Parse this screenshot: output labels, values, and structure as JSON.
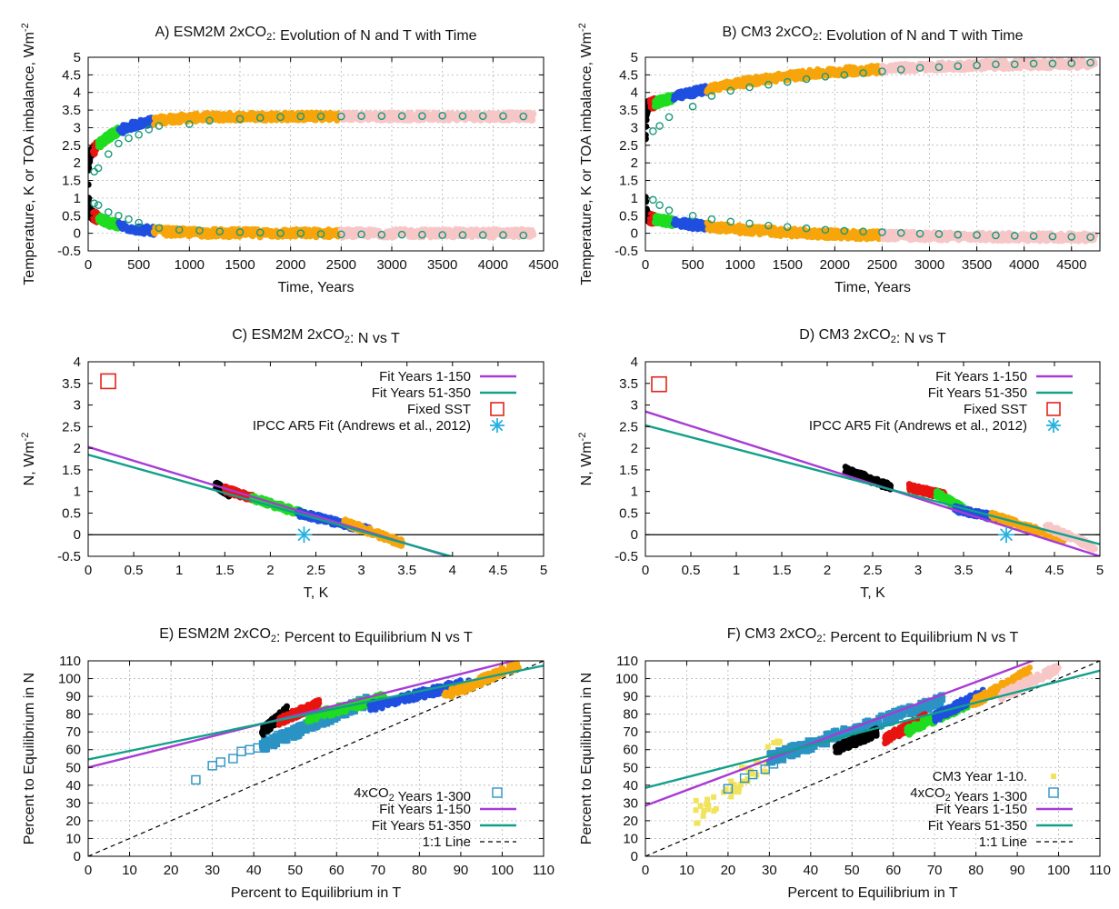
{
  "figure": {
    "panel_titles": [
      "A) ESM2M 2xCO2: Evolution of N and T with Time",
      "B) CM3 2xCO2: Evolution of N and T with Time",
      "C) ESM2M 2xCO2: N vs T",
      "D) CM3 2xCO2: N vs T",
      "E) ESM2M 2xCO2: Percent to Equilibrium N vs T",
      "F) CM3 2xCO2: Percent to Equilibrium N vs T"
    ]
  },
  "chart_data": [
    {
      "panel": "A",
      "type": "scatter",
      "title": "A) ESM2M 2xCO2: Evolution of N and T with Time",
      "xlabel": "Time, Years",
      "ylabel": "Temperature, K or TOA imbalance, Wm-2",
      "xlim": [
        0,
        4500
      ],
      "ylim": [
        -0.5,
        5
      ],
      "xticks": [
        0,
        500,
        1000,
        1500,
        2000,
        2500,
        3000,
        3500,
        4000,
        4500
      ],
      "yticks": [
        -0.5,
        0,
        0.5,
        1,
        1.5,
        2,
        2.5,
        3,
        3.5,
        4,
        4.5,
        5
      ],
      "grid": true,
      "run_colors": [
        "#000000",
        "#e8140f",
        "#1fdc1f",
        "#1f4fe0",
        "#f7a50a",
        "#f7c6c6"
      ],
      "T_curve": {
        "base": 1.25,
        "eq": 3.32,
        "amp1": 0.45,
        "tau1": 6,
        "tau2": 300
      },
      "N_curve": {
        "base": 1.2,
        "eq": 0.0,
        "amp1": 0.5,
        "tau1": 6,
        "tau2": 300
      },
      "segment_ends": [
        50,
        100,
        300,
        650,
        2500,
        4400
      ],
      "circle_markers_T": [
        [
          60,
          1.75
        ],
        [
          100,
          1.85
        ],
        [
          200,
          2.25
        ],
        [
          300,
          2.55
        ],
        [
          400,
          2.7
        ],
        [
          500,
          2.8
        ],
        [
          600,
          2.95
        ],
        [
          700,
          3.05
        ],
        [
          1000,
          3.1
        ],
        [
          1200,
          3.2
        ],
        [
          1500,
          3.25
        ],
        [
          1700,
          3.28
        ],
        [
          1900,
          3.3
        ],
        [
          2100,
          3.32
        ],
        [
          2300,
          3.32
        ],
        [
          2500,
          3.32
        ],
        [
          2700,
          3.33
        ],
        [
          2900,
          3.33
        ],
        [
          3100,
          3.33
        ],
        [
          3300,
          3.33
        ],
        [
          3500,
          3.34
        ],
        [
          3700,
          3.33
        ],
        [
          3900,
          3.33
        ],
        [
          4100,
          3.33
        ],
        [
          4300,
          3.32
        ]
      ],
      "circle_markers_N": [
        [
          60,
          0.85
        ],
        [
          100,
          0.8
        ],
        [
          200,
          0.6
        ],
        [
          300,
          0.5
        ],
        [
          400,
          0.4
        ],
        [
          500,
          0.3
        ],
        [
          700,
          0.15
        ],
        [
          900,
          0.1
        ],
        [
          1100,
          0.08
        ],
        [
          1300,
          0.05
        ],
        [
          1500,
          0.03
        ],
        [
          1700,
          0.02
        ],
        [
          1900,
          0.0
        ],
        [
          2100,
          0.0
        ],
        [
          2300,
          -0.02
        ],
        [
          2500,
          -0.03
        ],
        [
          2700,
          -0.03
        ],
        [
          2900,
          -0.04
        ],
        [
          3100,
          -0.04
        ],
        [
          3300,
          -0.04
        ],
        [
          3500,
          -0.05
        ],
        [
          3700,
          -0.05
        ],
        [
          3900,
          -0.05
        ],
        [
          4100,
          -0.05
        ],
        [
          4300,
          -0.06
        ]
      ]
    },
    {
      "panel": "B",
      "type": "scatter",
      "title": "B) CM3 2xCO2: Evolution of N and T with Time",
      "xlabel": "Time, Years",
      "ylabel": "Temperature, K or TOA imbalance, Wm-2",
      "xlim": [
        0,
        4800
      ],
      "ylim": [
        -0.5,
        5
      ],
      "xticks": [
        0,
        500,
        1000,
        1500,
        2000,
        2500,
        3000,
        3500,
        4000,
        4500
      ],
      "yticks": [
        -0.5,
        0,
        0.5,
        1,
        1.5,
        2,
        2.5,
        3,
        3.5,
        4,
        4.5,
        5
      ],
      "grid": true,
      "T_curve": {
        "base": 2.35,
        "eq": 4.85,
        "amp1": 0.5,
        "tau1": 6,
        "tau2": 1300
      },
      "N_curve": {
        "base": 1.3,
        "eq": -0.12,
        "amp1": 0.6,
        "tau1": 6,
        "tau2": 1100
      },
      "segment_ends": [
        50,
        100,
        300,
        650,
        2500,
        4750
      ],
      "circle_markers_T": [
        [
          80,
          2.9
        ],
        [
          150,
          3.05
        ],
        [
          250,
          3.3
        ],
        [
          500,
          3.6
        ],
        [
          700,
          3.9
        ],
        [
          900,
          4.05
        ],
        [
          1100,
          4.15
        ],
        [
          1300,
          4.22
        ],
        [
          1500,
          4.3
        ],
        [
          1700,
          4.38
        ],
        [
          1900,
          4.45
        ],
        [
          2100,
          4.5
        ],
        [
          2300,
          4.55
        ],
        [
          2500,
          4.6
        ],
        [
          2700,
          4.65
        ],
        [
          2900,
          4.7
        ],
        [
          3100,
          4.72
        ],
        [
          3300,
          4.75
        ],
        [
          3500,
          4.77
        ],
        [
          3700,
          4.8
        ],
        [
          3900,
          4.8
        ],
        [
          4100,
          4.82
        ],
        [
          4300,
          4.82
        ],
        [
          4500,
          4.83
        ],
        [
          4700,
          4.85
        ]
      ],
      "circle_markers_N": [
        [
          80,
          0.95
        ],
        [
          150,
          0.8
        ],
        [
          250,
          0.65
        ],
        [
          500,
          0.5
        ],
        [
          700,
          0.4
        ],
        [
          900,
          0.33
        ],
        [
          1100,
          0.28
        ],
        [
          1300,
          0.22
        ],
        [
          1500,
          0.18
        ],
        [
          1700,
          0.14
        ],
        [
          1900,
          0.1
        ],
        [
          2100,
          0.07
        ],
        [
          2300,
          0.05
        ],
        [
          2500,
          0.03
        ],
        [
          2700,
          0.01
        ],
        [
          2900,
          -0.01
        ],
        [
          3100,
          -0.02
        ],
        [
          3300,
          -0.04
        ],
        [
          3500,
          -0.05
        ],
        [
          3700,
          -0.06
        ],
        [
          3900,
          -0.07
        ],
        [
          4100,
          -0.08
        ],
        [
          4300,
          -0.09
        ],
        [
          4500,
          -0.1
        ],
        [
          4700,
          -0.11
        ]
      ]
    },
    {
      "panel": "C",
      "type": "scatter",
      "title": "C) ESM2M 2xCO2: N vs T",
      "xlabel": "T, K",
      "ylabel": "N, Wm-2",
      "xlim": [
        0,
        5
      ],
      "ylim": [
        -0.5,
        4
      ],
      "xticks": [
        0,
        0.5,
        1,
        1.5,
        2,
        2.5,
        3,
        3.5,
        4,
        4.5,
        5
      ],
      "yticks": [
        -0.5,
        0,
        0.5,
        1,
        1.5,
        2,
        2.5,
        3,
        3.5,
        4
      ],
      "grid": false,
      "zero_line": 0,
      "run_clusters": [
        {
          "color": "#000000",
          "T": [
            1.4,
            1.55
          ],
          "N": [
            0.95,
            1.15
          ]
        },
        {
          "color": "#e8140f",
          "T": [
            1.5,
            1.8
          ],
          "N": [
            0.85,
            1.05
          ]
        },
        {
          "color": "#1fdc1f",
          "T": [
            1.8,
            2.4
          ],
          "N": [
            0.45,
            0.85
          ]
        },
        {
          "color": "#1f4fe0",
          "T": [
            2.3,
            3.1
          ],
          "N": [
            0.1,
            0.5
          ]
        },
        {
          "color": "#f7a50a",
          "T": [
            2.8,
            3.45
          ],
          "N": [
            -0.2,
            0.3
          ]
        }
      ],
      "fits": [
        {
          "name": "Fit Years 1-150",
          "color": "#a83bd4",
          "intercept": 2.03,
          "slope": -0.64
        },
        {
          "name": "Fit Years 51-350",
          "color": "#12a08a",
          "intercept": 1.85,
          "slope": -0.59
        }
      ],
      "fixed_sst": {
        "T": 0.22,
        "N": 3.55
      },
      "ipcc_fit": {
        "T": 2.37,
        "N": 0.0
      },
      "legend": [
        "Fit Years 1-150",
        "Fit Years 51-350",
        "Fixed SST",
        "IPCC AR5 Fit (Andrews et al., 2012)"
      ],
      "legend_position": "top-right"
    },
    {
      "panel": "D",
      "type": "scatter",
      "title": "D) CM3 2xCO2: N vs T",
      "xlabel": "T, K",
      "ylabel": "N, Wm-2",
      "xlim": [
        0,
        5
      ],
      "ylim": [
        -0.5,
        4
      ],
      "xticks": [
        0,
        0.5,
        1,
        1.5,
        2,
        2.5,
        3,
        3.5,
        4,
        4.5,
        5
      ],
      "yticks": [
        -0.5,
        0,
        0.5,
        1,
        1.5,
        2,
        2.5,
        3,
        3.5,
        4
      ],
      "grid": false,
      "zero_line": 0,
      "run_clusters": [
        {
          "color": "#000000",
          "T": [
            2.2,
            2.7
          ],
          "N": [
            1.1,
            1.5
          ]
        },
        {
          "color": "#e8140f",
          "T": [
            2.9,
            3.3
          ],
          "N": [
            0.9,
            1.1
          ]
        },
        {
          "color": "#1fdc1f",
          "T": [
            3.2,
            3.5
          ],
          "N": [
            0.6,
            0.95
          ]
        },
        {
          "color": "#1f4fe0",
          "T": [
            3.4,
            3.95
          ],
          "N": [
            0.35,
            0.6
          ]
        },
        {
          "color": "#f7a50a",
          "T": [
            3.8,
            4.6
          ],
          "N": [
            -0.1,
            0.45
          ]
        },
        {
          "color": "#f7c6c6",
          "T": [
            4.4,
            4.95
          ],
          "N": [
            -0.3,
            0.2
          ]
        }
      ],
      "fits": [
        {
          "name": "Fit Years 1-150",
          "color": "#a83bd4",
          "intercept": 2.85,
          "slope": -0.67
        },
        {
          "name": "Fit Years 51-350",
          "color": "#12a08a",
          "intercept": 2.53,
          "slope": -0.55
        }
      ],
      "fixed_sst": {
        "T": 0.15,
        "N": 3.48
      },
      "ipcc_fit": {
        "T": 3.97,
        "N": 0.0
      },
      "legend": [
        "Fit Years 1-150",
        "Fit Years 51-350",
        "Fixed SST",
        "IPCC AR5 Fit (Andrews et al., 2012)"
      ],
      "legend_position": "top-right"
    },
    {
      "panel": "E",
      "type": "scatter",
      "title": "E) ESM2M 2xCO2: Percent to Equilibrium N vs T",
      "xlabel": "Percent to Equilibrium in T",
      "ylabel": "Percent to Equilibrium in N",
      "xlim": [
        0,
        110
      ],
      "ylim": [
        0,
        110
      ],
      "xticks": [
        0,
        10,
        20,
        30,
        40,
        50,
        60,
        70,
        80,
        90,
        100,
        110
      ],
      "yticks": [
        0,
        10,
        20,
        30,
        40,
        50,
        60,
        70,
        80,
        90,
        100,
        110
      ],
      "grid": true,
      "run_clusters": [
        {
          "color": "#000000",
          "T": [
            42,
            48
          ],
          "N": [
            70,
            82
          ]
        },
        {
          "color": "#e8140f",
          "T": [
            46,
            56
          ],
          "N": [
            76,
            86
          ]
        },
        {
          "color": "#1fdc1f",
          "T": [
            53,
            72
          ],
          "N": [
            78,
            90
          ]
        },
        {
          "color": "#1f4fe0",
          "T": [
            68,
            92
          ],
          "N": [
            84,
            98
          ]
        },
        {
          "color": "#f7a50a",
          "T": [
            86,
            104
          ],
          "N": [
            90,
            108
          ]
        }
      ],
      "quad_squares": [
        [
          26,
          43
        ],
        [
          30,
          51
        ],
        [
          32,
          53
        ],
        [
          35,
          55
        ],
        [
          37,
          59
        ],
        [
          39,
          60
        ],
        [
          41,
          61
        ],
        [
          43,
          64
        ],
        [
          44,
          66
        ],
        [
          46,
          68
        ]
      ],
      "quad_cloud": {
        "color": "#2a93c4",
        "T": [
          42,
          68
        ],
        "N": [
          62,
          88
        ]
      },
      "fits": [
        {
          "name": "Fit Years 1-150",
          "color": "#a83bd4",
          "intercept": 50,
          "slope": 0.585
        },
        {
          "name": "Fit Years 51-350",
          "color": "#12a08a",
          "intercept": 54.5,
          "slope": 0.48
        }
      ],
      "one_to_one": true,
      "legend": [
        "4xCO2 Years 1-300",
        "Fit Years 1-150",
        "Fit Years 51-350",
        "1:1 Line"
      ],
      "legend_position": "bottom-right"
    },
    {
      "panel": "F",
      "type": "scatter",
      "title": "F) CM3 2xCO2: Percent to Equilibrium N vs T",
      "xlabel": "Percent to Equilibrium in T",
      "ylabel": "Percent to Equilibrium in N",
      "xlim": [
        0,
        110
      ],
      "ylim": [
        0,
        110
      ],
      "xticks": [
        0,
        10,
        20,
        30,
        40,
        50,
        60,
        70,
        80,
        90,
        100,
        110
      ],
      "yticks": [
        0,
        10,
        20,
        30,
        40,
        50,
        60,
        70,
        80,
        90,
        100,
        110
      ],
      "grid": true,
      "run_clusters": [
        {
          "color": "#000000",
          "T": [
            46,
            56
          ],
          "N": [
            60,
            70
          ]
        },
        {
          "color": "#e8140f",
          "T": [
            58,
            68
          ],
          "N": [
            66,
            78
          ]
        },
        {
          "color": "#1fdc1f",
          "T": [
            63,
            78
          ],
          "N": [
            70,
            86
          ]
        },
        {
          "color": "#1f4fe0",
          "T": [
            70,
            82
          ],
          "N": [
            78,
            92
          ]
        },
        {
          "color": "#f7a50a",
          "T": [
            79,
            93
          ],
          "N": [
            86,
            104
          ]
        },
        {
          "color": "#f7c6c6",
          "T": [
            86,
            100
          ],
          "N": [
            90,
            106
          ]
        }
      ],
      "yellow_cloud": {
        "color": "#f2e35c",
        "T": [
          12,
          35
        ],
        "N": [
          24,
          64
        ]
      },
      "quad_squares": [
        [
          20,
          38
        ],
        [
          24,
          44
        ],
        [
          26,
          46
        ],
        [
          29,
          49
        ],
        [
          31,
          52
        ],
        [
          33,
          55
        ],
        [
          35,
          58
        ],
        [
          37,
          60
        ]
      ],
      "quad_cloud": {
        "color": "#2a93c4",
        "T": [
          30,
          72
        ],
        "N": [
          55,
          88
        ]
      },
      "fits": [
        {
          "name": "Fit Years 1-150",
          "color": "#a83bd4",
          "intercept": 28.5,
          "slope": 0.87
        },
        {
          "name": "Fit Years 51-350",
          "color": "#12a08a",
          "intercept": 38.5,
          "slope": 0.6
        }
      ],
      "one_to_one": true,
      "legend": [
        "CM3 Year 1-10.",
        "4xCO2 Years 1-300",
        "Fit Years 1-150",
        "Fit Years 51-350",
        "1:1 Line"
      ],
      "legend_position": "bottom-right"
    }
  ]
}
